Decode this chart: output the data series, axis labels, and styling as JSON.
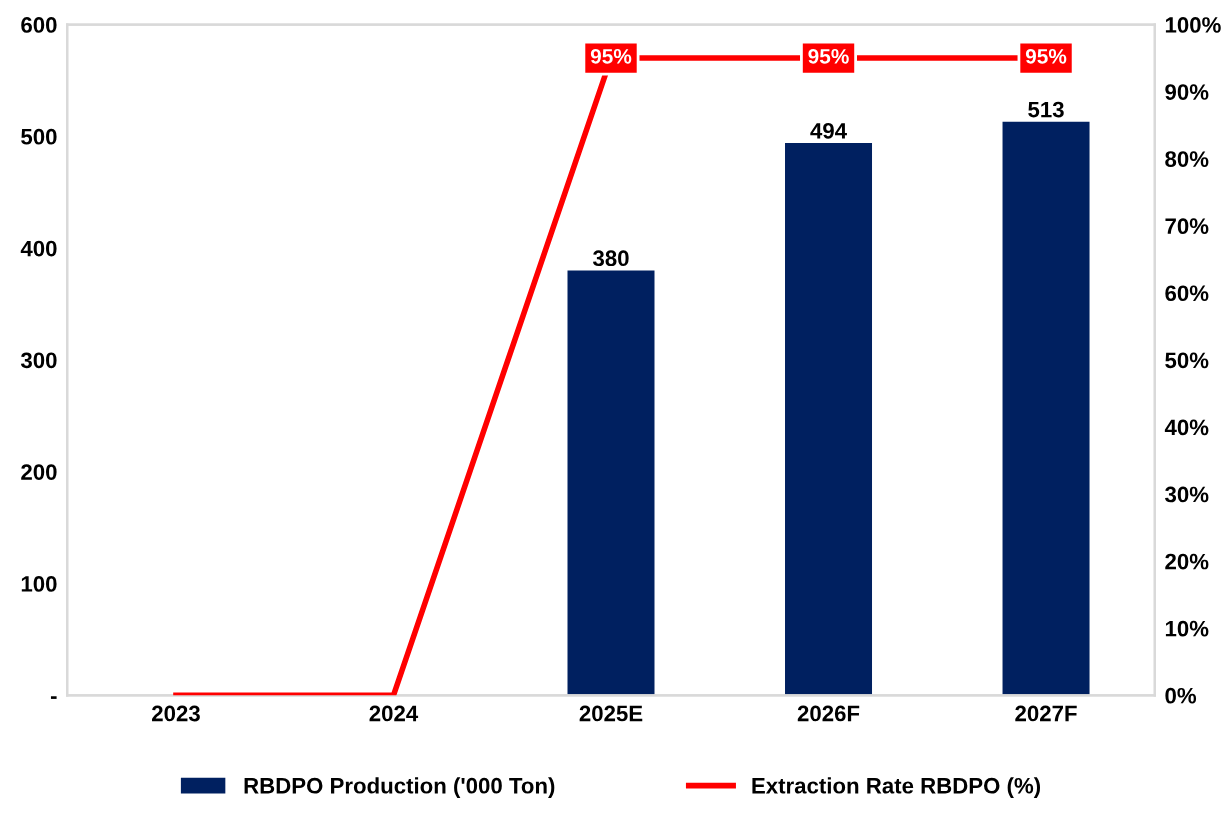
{
  "chart_data": {
    "type": "bar",
    "categories": [
      "2023",
      "2024",
      "2025E",
      "2026F",
      "2027F"
    ],
    "series": [
      {
        "name": "RBDPO Production ('000 Ton)",
        "color": "#002060",
        "values": [
          null,
          null,
          380,
          494,
          513
        ],
        "value_labels": [
          null,
          null,
          "380",
          "494",
          "513"
        ]
      },
      {
        "name": "Extraction Rate RBDPO (%)",
        "type": "line",
        "axis": "y2",
        "color": "#ff0000",
        "values": [
          0,
          0,
          95,
          95,
          95
        ],
        "value_labels": [
          null,
          null,
          "95%",
          "95%",
          "95%"
        ]
      }
    ],
    "ylim": [
      0,
      600
    ],
    "yticks": [
      {
        "value": 0,
        "label": "-"
      },
      100,
      200,
      300,
      400,
      500,
      600
    ],
    "y2lim": [
      0,
      100
    ],
    "y2ticks": [
      {
        "value": 0,
        "label": "0%"
      },
      {
        "value": 10,
        "label": "10%"
      },
      {
        "value": 20,
        "label": "20%"
      },
      {
        "value": 30,
        "label": "30%"
      },
      {
        "value": 40,
        "label": "40%"
      },
      {
        "value": 50,
        "label": "50%"
      },
      {
        "value": 60,
        "label": "60%"
      },
      {
        "value": 70,
        "label": "70%"
      },
      {
        "value": 80,
        "label": "80%"
      },
      {
        "value": 90,
        "label": "90%"
      },
      {
        "value": 100,
        "label": "100%"
      }
    ],
    "grid": false,
    "legend": "bottom",
    "line_style": "solid"
  }
}
